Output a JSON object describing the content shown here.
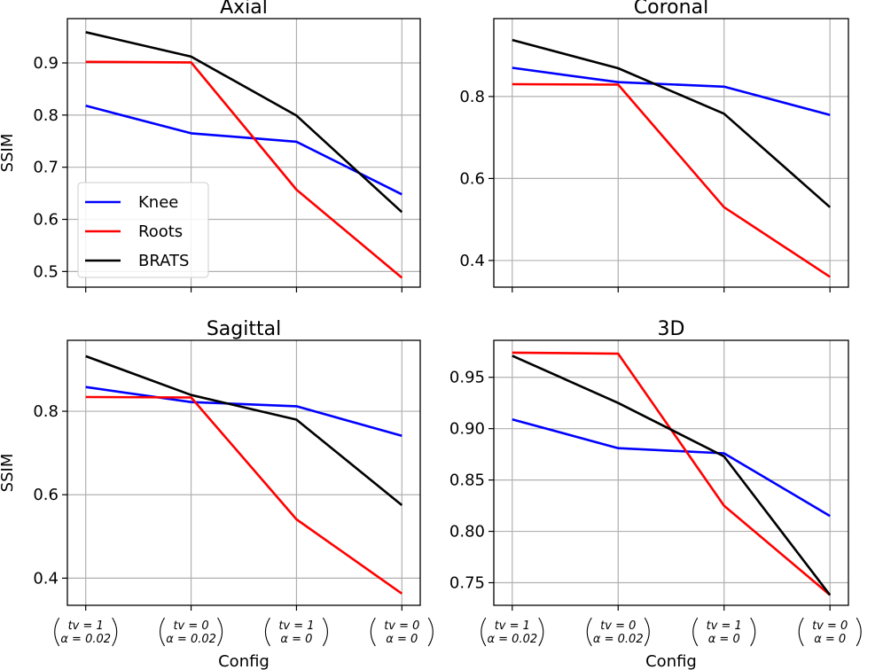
{
  "chart_data": [
    {
      "type": "line",
      "title": "Axial",
      "xlabel": "",
      "ylabel": "SSIM",
      "categories": [
        "tv=1, α=0.02",
        "tv=0, α=0.02",
        "tv=1, α=0",
        "tv=0, α=0"
      ],
      "yticks": [
        "0.5",
        "0.6",
        "0.7",
        "0.8",
        "0.9"
      ],
      "ylim": [
        0.47,
        0.985
      ],
      "grid": true,
      "legend": "center-left",
      "series": [
        {
          "name": "Knee",
          "color": "#0000ff",
          "values": [
            0.818,
            0.765,
            0.749,
            0.648
          ]
        },
        {
          "name": "Roots",
          "color": "#ff0000",
          "values": [
            0.902,
            0.901,
            0.657,
            0.488
          ]
        },
        {
          "name": "BRATS",
          "color": "#000000",
          "values": [
            0.959,
            0.912,
            0.799,
            0.614
          ]
        }
      ]
    },
    {
      "type": "line",
      "title": "Coronal",
      "xlabel": "",
      "ylabel": "",
      "categories": [
        "tv=1, α=0.02",
        "tv=0, α=0.02",
        "tv=1, α=0",
        "tv=0, α=0"
      ],
      "yticks": [
        "0.4",
        "0.6",
        "0.8"
      ],
      "ylim": [
        0.335,
        0.99
      ],
      "grid": true,
      "series": [
        {
          "name": "Knee",
          "color": "#0000ff",
          "values": [
            0.87,
            0.835,
            0.824,
            0.755
          ]
        },
        {
          "name": "Roots",
          "color": "#ff0000",
          "values": [
            0.83,
            0.829,
            0.53,
            0.36
          ]
        },
        {
          "name": "BRATS",
          "color": "#000000",
          "values": [
            0.938,
            0.869,
            0.758,
            0.53
          ]
        }
      ]
    },
    {
      "type": "line",
      "title": "Sagittal",
      "xlabel": "Config",
      "ylabel": "SSIM",
      "categories": [
        "tv=1, α=0.02",
        "tv=0, α=0.02",
        "tv=1, α=0",
        "tv=0, α=0"
      ],
      "yticks": [
        "0.4",
        "0.6",
        "0.8"
      ],
      "ylim": [
        0.335,
        0.97
      ],
      "grid": true,
      "series": [
        {
          "name": "Knee",
          "color": "#0000ff",
          "values": [
            0.858,
            0.822,
            0.812,
            0.741
          ]
        },
        {
          "name": "Roots",
          "color": "#ff0000",
          "values": [
            0.834,
            0.833,
            0.541,
            0.363
          ]
        },
        {
          "name": "BRATS",
          "color": "#000000",
          "values": [
            0.932,
            0.839,
            0.78,
            0.575
          ]
        }
      ]
    },
    {
      "type": "line",
      "title": "3D",
      "xlabel": "Config",
      "ylabel": "",
      "categories": [
        "tv=1, α=0.02",
        "tv=0, α=0.02",
        "tv=1, α=0",
        "tv=0, α=0"
      ],
      "yticks": [
        "0.75",
        "0.80",
        "0.85",
        "0.90",
        "0.95"
      ],
      "ylim": [
        0.728,
        0.986
      ],
      "grid": true,
      "series": [
        {
          "name": "Knee",
          "color": "#0000ff",
          "values": [
            0.909,
            0.881,
            0.876,
            0.815
          ]
        },
        {
          "name": "Roots",
          "color": "#ff0000",
          "values": [
            0.974,
            0.973,
            0.825,
            0.738
          ]
        },
        {
          "name": "BRATS",
          "color": "#000000",
          "values": [
            0.971,
            0.925,
            0.873,
            0.738
          ]
        }
      ]
    }
  ],
  "config_labels": [
    {
      "tv": "tv = 1",
      "alpha": "α = 0.02"
    },
    {
      "tv": "tv = 0",
      "alpha": "α = 0.02"
    },
    {
      "tv": "tv = 1",
      "alpha": "α = 0"
    },
    {
      "tv": "tv = 0",
      "alpha": "α = 0"
    }
  ]
}
